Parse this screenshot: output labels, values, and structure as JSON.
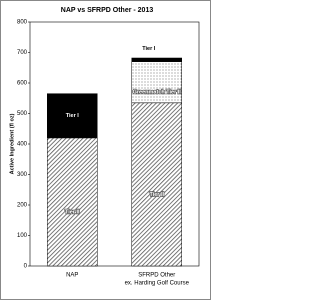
{
  "chart_data": {
    "type": "stacked_bar",
    "title": "NAP vs SFRPD Other - 2013",
    "y_label": "Active Ingredient (fl oz)",
    "categories": [
      "NAP",
      "SFRPD Other"
    ],
    "annotations": [
      "ex. Harding Golf Course"
    ],
    "series": [
      {
        "name": "Tier II",
        "pattern": "hatch",
        "values": [
          420,
          535
        ]
      },
      {
        "name": "Greenmatch Tier II",
        "pattern": "dots",
        "values": [
          null,
          135
        ]
      },
      {
        "name": "Tier I",
        "color": "#000000",
        "values": [
          145,
          12
        ]
      }
    ],
    "ylim": [
      0,
      800
    ],
    "yticks": [
      0,
      100,
      200,
      300,
      400,
      500,
      600,
      700,
      800
    ]
  }
}
